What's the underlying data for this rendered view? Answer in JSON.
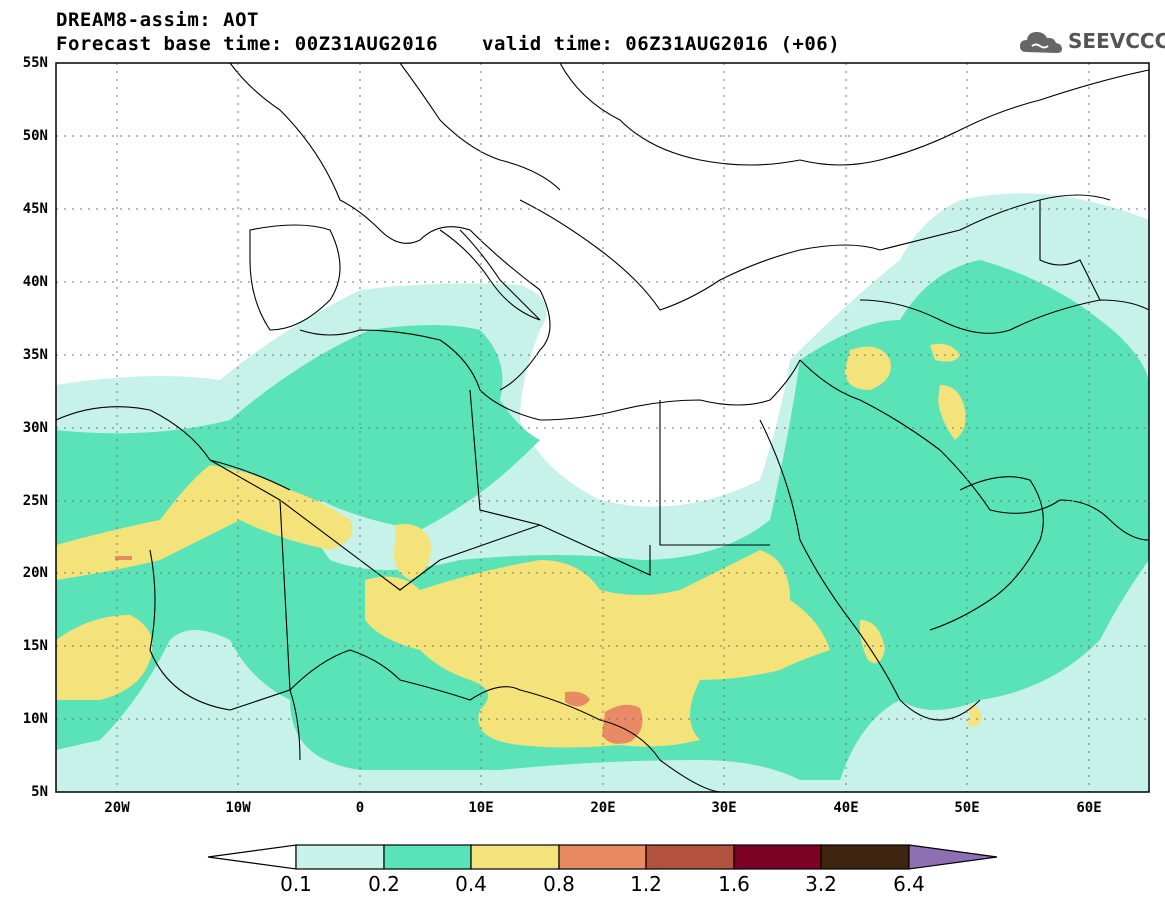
{
  "header": {
    "title_line1": "DREAM8-assim: AOT",
    "title_line2": "Forecast base time: 00Z31AUG2016",
    "valid_time": "valid time: 06Z31AUG2016 (+06)",
    "logo_text": "SEEVCCC"
  },
  "map": {
    "lat_labels": [
      "55N",
      "50N",
      "45N",
      "40N",
      "35N",
      "30N",
      "25N",
      "20N",
      "15N",
      "10N",
      "5N"
    ],
    "lon_labels": [
      "20W",
      "10W",
      "0",
      "10E",
      "20E",
      "30E",
      "40E",
      "50E",
      "60E"
    ],
    "extent": {
      "lon": [
        -25,
        65
      ],
      "lat": [
        5,
        55
      ]
    }
  },
  "colorbar": {
    "labels": [
      "0.1",
      "0.2",
      "0.4",
      "0.8",
      "1.2",
      "1.6",
      "3.2",
      "6.4"
    ],
    "colors": [
      "#c6f2ea",
      "#5ae3b7",
      "#f4e27a",
      "#e88a63",
      "#b2523e",
      "#7d0025",
      "#3d2510",
      "#8e6fb3"
    ],
    "low_end_color": "#ffffff"
  },
  "fields": {
    "background": "#ffffff",
    "light": "#c6f2ea",
    "medium": "#5ae3b7",
    "yellow": "#f4e27a",
    "orange": "#e88a63"
  }
}
